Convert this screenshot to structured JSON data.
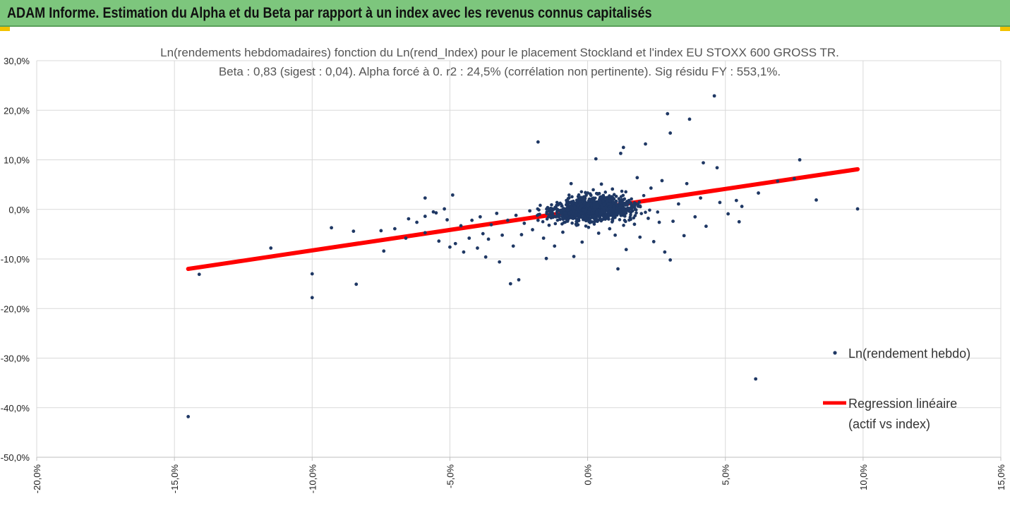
{
  "header": {
    "title": "ADAM Informe. Estimation du Alpha et du Beta par rapport à un index avec les revenus connus capitalisés",
    "background": "#7dc67d"
  },
  "chart_data": {
    "type": "scatter",
    "title": "Ln(rendements hebdomadaires) fonction du Ln(rend_Index) pour le placement Stockland et l'index EU STOXX 600 GROSS TR.",
    "subtitle": "Beta : 0,83 (sigest : 0,04).  Alpha forcé à 0. r2 : 24,5% (corrélation non pertinente). Sig résidu FY : 553,1%.",
    "xlabel": "",
    "ylabel": "",
    "xlim": [
      -20,
      15
    ],
    "ylim": [
      -50,
      30
    ],
    "grid": true,
    "x_ticks": [
      "-20,0%",
      "-15,0%",
      "-10,0%",
      "-5,0%",
      "0,0%",
      "5,0%",
      "10,0%",
      "15,0%"
    ],
    "y_ticks": [
      "30,0%",
      "20,0%",
      "10,0%",
      "0,0%",
      "-10,0%",
      "-20,0%",
      "-30,0%",
      "-40,0%",
      "-50,0%"
    ],
    "legend_position": "right",
    "series": [
      {
        "name": "Ln(rendement hebdo)",
        "kind": "points",
        "color": "#1f3864",
        "points": [
          [
            -14.5,
            -41.8
          ],
          [
            -14.1,
            -13.1
          ],
          [
            -11.5,
            -7.8
          ],
          [
            -10.0,
            -13.0
          ],
          [
            -10.0,
            -17.8
          ],
          [
            -9.3,
            -3.7
          ],
          [
            -8.5,
            -4.4
          ],
          [
            -8.4,
            -15.1
          ],
          [
            -7.5,
            -4.3
          ],
          [
            -7.4,
            -8.4
          ],
          [
            -7.0,
            -3.9
          ],
          [
            -6.6,
            -5.8
          ],
          [
            -6.5,
            -1.9
          ],
          [
            -6.2,
            -2.6
          ],
          [
            -5.9,
            2.3
          ],
          [
            -5.9,
            -1.4
          ],
          [
            -5.9,
            -4.7
          ],
          [
            -5.6,
            -0.5
          ],
          [
            -5.5,
            -0.7
          ],
          [
            -5.4,
            -6.4
          ],
          [
            -5.2,
            0.1
          ],
          [
            -5.1,
            -2.1
          ],
          [
            -5.0,
            -7.6
          ],
          [
            -4.9,
            2.9
          ],
          [
            -4.8,
            -6.9
          ],
          [
            -4.6,
            -3.3
          ],
          [
            -4.5,
            -8.6
          ],
          [
            -4.3,
            -5.8
          ],
          [
            -4.2,
            -2.2
          ],
          [
            -4.0,
            -7.8
          ],
          [
            -3.9,
            -1.5
          ],
          [
            -3.8,
            -4.9
          ],
          [
            -3.7,
            -9.6
          ],
          [
            -3.6,
            -6.0
          ],
          [
            -3.5,
            -3.1
          ],
          [
            -3.3,
            -0.8
          ],
          [
            -3.2,
            -10.6
          ],
          [
            -3.1,
            -5.2
          ],
          [
            -2.9,
            -2.2
          ],
          [
            -2.8,
            -15.0
          ],
          [
            -2.7,
            -7.4
          ],
          [
            -2.6,
            -1.2
          ],
          [
            -2.5,
            -14.2
          ],
          [
            -2.4,
            -5.1
          ],
          [
            -2.3,
            -2.8
          ],
          [
            -2.1,
            -0.3
          ],
          [
            -2.0,
            -4.1
          ],
          [
            -1.8,
            13.6
          ],
          [
            -1.8,
            -2.2
          ],
          [
            -1.6,
            -5.8
          ],
          [
            -1.5,
            -9.9
          ],
          [
            -1.4,
            -3.2
          ],
          [
            -1.3,
            -0.5
          ],
          [
            -1.2,
            -7.4
          ],
          [
            -1.0,
            -2.0
          ],
          [
            -0.9,
            -4.6
          ],
          [
            -0.7,
            -1.5
          ],
          [
            -0.6,
            5.2
          ],
          [
            -0.5,
            -9.5
          ],
          [
            -0.4,
            -3.2
          ],
          [
            -0.3,
            2.1
          ],
          [
            -0.2,
            -6.6
          ],
          [
            0.1,
            -2.5
          ],
          [
            0.3,
            10.2
          ],
          [
            0.4,
            -4.8
          ],
          [
            0.5,
            5.1
          ],
          [
            0.6,
            -1.6
          ],
          [
            0.8,
            -3.9
          ],
          [
            0.9,
            4.1
          ],
          [
            1.0,
            -5.2
          ],
          [
            1.1,
            -12.0
          ],
          [
            1.2,
            11.3
          ],
          [
            1.3,
            12.5
          ],
          [
            1.4,
            -8.1
          ],
          [
            1.5,
            1.8
          ],
          [
            1.7,
            -3.0
          ],
          [
            1.8,
            6.4
          ],
          [
            1.9,
            -5.6
          ],
          [
            2.1,
            13.2
          ],
          [
            2.2,
            -1.8
          ],
          [
            2.3,
            4.3
          ],
          [
            2.4,
            -6.5
          ],
          [
            2.6,
            -2.6
          ],
          [
            2.7,
            5.8
          ],
          [
            2.8,
            -8.6
          ],
          [
            2.9,
            19.3
          ],
          [
            3.0,
            15.4
          ],
          [
            3.0,
            -10.2
          ],
          [
            3.1,
            -2.4
          ],
          [
            3.3,
            1.1
          ],
          [
            3.5,
            -5.3
          ],
          [
            3.6,
            5.2
          ],
          [
            3.7,
            18.2
          ],
          [
            3.9,
            -1.5
          ],
          [
            4.1,
            2.3
          ],
          [
            4.2,
            9.4
          ],
          [
            4.3,
            -3.4
          ],
          [
            4.6,
            22.9
          ],
          [
            4.7,
            8.4
          ],
          [
            4.8,
            1.4
          ],
          [
            5.1,
            -0.9
          ],
          [
            5.4,
            1.8
          ],
          [
            5.5,
            -2.5
          ],
          [
            5.6,
            0.6
          ],
          [
            6.1,
            -34.2
          ],
          [
            6.2,
            3.3
          ],
          [
            6.9,
            5.7
          ],
          [
            7.5,
            6.2
          ],
          [
            7.7,
            10.0
          ],
          [
            8.3,
            1.9
          ],
          [
            9.8,
            0.1
          ]
        ]
      },
      {
        "name": "Regression linéaire (actif vs index)",
        "kind": "line",
        "color": "#ff0000",
        "x": [
          -14.5,
          9.8
        ],
        "y": [
          -12.0,
          8.1
        ]
      }
    ],
    "legend": [
      {
        "label": "Ln(rendement hebdo)",
        "marker": "point",
        "color": "#1f3864"
      },
      {
        "label": "Regression linéaire",
        "label2": "(actif vs index)",
        "marker": "line",
        "color": "#ff0000"
      }
    ]
  }
}
